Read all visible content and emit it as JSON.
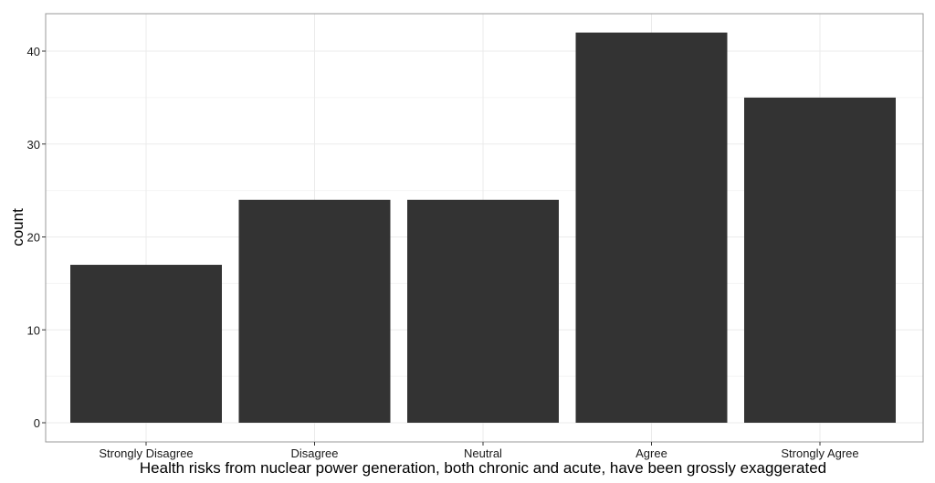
{
  "chart_data": {
    "type": "bar",
    "categories": [
      "Strongly Disagree",
      "Disagree",
      "Neutral",
      "Agree",
      "Strongly Agree"
    ],
    "values": [
      17,
      24,
      24,
      42,
      35
    ],
    "title": "",
    "xlabel": "Health risks from nuclear power generation, both chronic and acute, have been grossly exaggerated",
    "ylabel": "count",
    "ylim": [
      0,
      44
    ],
    "yticks": [
      0,
      10,
      20,
      30,
      40
    ],
    "grid": true,
    "legend": "none",
    "colors": {
      "bar": "#333333",
      "panel_border": "#999999",
      "grid": "#ebebeb",
      "background": "#ffffff"
    }
  }
}
